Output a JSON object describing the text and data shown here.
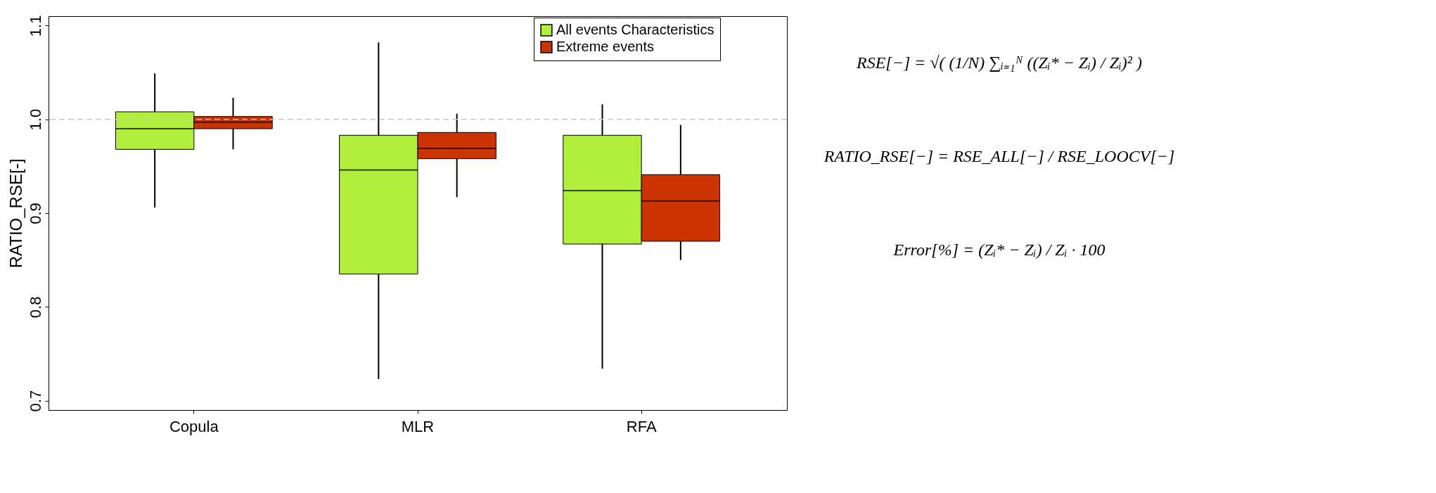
{
  "chart_data": {
    "type": "box",
    "ylabel": "RATIO_RSE[-]",
    "categories": [
      "Copula",
      "MLR",
      "RFA"
    ],
    "ylim": [
      0.69,
      1.11
    ],
    "yticks": [
      0.7,
      0.8,
      0.9,
      {
        "value": 1,
        "label": "1.0"
      },
      1.1
    ],
    "grid": false,
    "legend": "top right",
    "series": [
      {
        "name": "All events Characteristics",
        "color": "#b2ee3c",
        "boxes": [
          {
            "low": 0.906,
            "q1": 0.968,
            "median": 0.99,
            "q3": 1.008,
            "high": 1.049
          },
          {
            "low": 0.723,
            "q1": 0.835,
            "median": 0.946,
            "q3": 0.983,
            "high": 1.082
          },
          {
            "low": 0.734,
            "q1": 0.867,
            "median": 0.924,
            "q3": 0.983,
            "high": 1.016
          }
        ]
      },
      {
        "name": "Extreme events",
        "color": "#cc3300",
        "boxes": [
          {
            "low": 0.968,
            "q1": 0.99,
            "median": 0.997,
            "q3": 1.003,
            "high": 1.023
          },
          {
            "low": 0.917,
            "q1": 0.958,
            "median": 0.969,
            "q3": 0.986,
            "high": 1.006
          },
          {
            "low": 0.85,
            "q1": 0.87,
            "median": 0.913,
            "q3": 0.941,
            "high": 0.994
          }
        ]
      }
    ],
    "ref_lines": [
      {
        "axis": "y",
        "value": 1.0,
        "label": null,
        "color": "#c8c8c8",
        "line_style": "dashed"
      }
    ],
    "annotations": [
      "RSE[−] = √( (1/N) ∑ᵢ₌₁ᴺ ((Zᵢ* − Zᵢ) / Zᵢ)² )",
      "RATIO_RSE[−] = RSE_ALL[−] / RSE_LOOCV[−]",
      "Error[%] = (Zᵢ* − Zᵢ) / Zᵢ · 100"
    ]
  }
}
